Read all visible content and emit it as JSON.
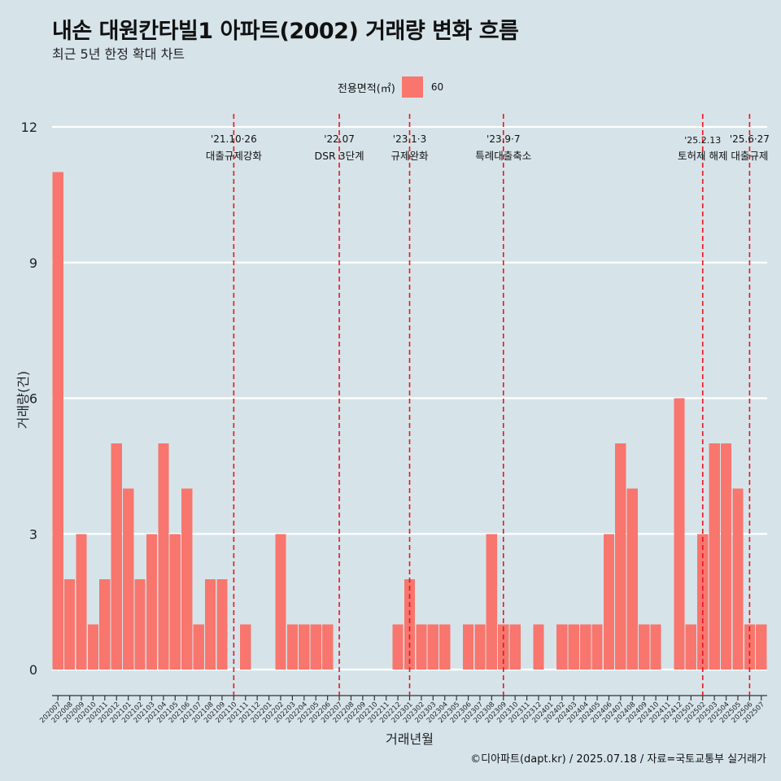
{
  "title": "내손 대원칸타빌1 아파트(2002) 거래량 변화 흐름",
  "subtitle": "최근 5년 한정 확대 차트",
  "caption": "©디아파트(dapt.kr) / 2025.07.18 / 자료=국토교통부 실거래가",
  "legend": {
    "title": "전용면적(㎡)",
    "label": "60",
    "color": "#f8766d"
  },
  "colors": {
    "bar": "#f8766d",
    "background": "#d6e4ea",
    "grid": "#ffffff",
    "event_line": "#e8141e"
  },
  "chart_data": {
    "type": "bar",
    "title": "내손 대원칸타빌1 아파트(2002) 거래량 변화 흐름",
    "subtitle": "최근 5년 한정 확대 차트",
    "xlabel": "거래년월",
    "ylabel": "거래량(건)",
    "ylim": [
      0,
      12
    ],
    "yticks": [
      0,
      3,
      6,
      9,
      12
    ],
    "grid": "horizontal",
    "legend_position": "top",
    "categories": [
      "202007",
      "202008",
      "202009",
      "202010",
      "202011",
      "202012",
      "202101",
      "202102",
      "202103",
      "202104",
      "202105",
      "202106",
      "202107",
      "202108",
      "202109",
      "202110",
      "202111",
      "202112",
      "202201",
      "202202",
      "202203",
      "202204",
      "202205",
      "202206",
      "202207",
      "202208",
      "202209",
      "202210",
      "202211",
      "202212",
      "202301",
      "202302",
      "202303",
      "202304",
      "202305",
      "202306",
      "202307",
      "202308",
      "202309",
      "202310",
      "202311",
      "202312",
      "202401",
      "202402",
      "202403",
      "202404",
      "202405",
      "202406",
      "202407",
      "202408",
      "202409",
      "202410",
      "202411",
      "202412",
      "202501",
      "202502",
      "202503",
      "202504",
      "202505",
      "202506",
      "202507"
    ],
    "series": [
      {
        "name": "60",
        "values": [
          11,
          2,
          3,
          1,
          2,
          5,
          4,
          2,
          3,
          5,
          3,
          4,
          1,
          2,
          2,
          0,
          1,
          0,
          0,
          3,
          1,
          1,
          1,
          1,
          0,
          0,
          0,
          0,
          0,
          1,
          2,
          1,
          1,
          1,
          0,
          1,
          1,
          3,
          1,
          1,
          0,
          1,
          0,
          1,
          1,
          1,
          1,
          3,
          5,
          4,
          1,
          1,
          0,
          6,
          1,
          3,
          5,
          5,
          4,
          1,
          1
        ]
      }
    ],
    "annotations": [
      {
        "at": "202110",
        "date": "'21.10·26",
        "label": "대출규제강화"
      },
      {
        "at": "202207",
        "date": "'22.07",
        "label": "DSR 3단계"
      },
      {
        "at": "202301",
        "date": "'23.1·3",
        "label": "규제완화"
      },
      {
        "at": "202309",
        "date": "'23.9·7",
        "label": "특례대출축소"
      },
      {
        "at": "202502",
        "date": "'25.2.13",
        "label": "토허제 해제"
      },
      {
        "at": "202506",
        "date": "'25.6·27",
        "label": "대출규제"
      }
    ]
  }
}
